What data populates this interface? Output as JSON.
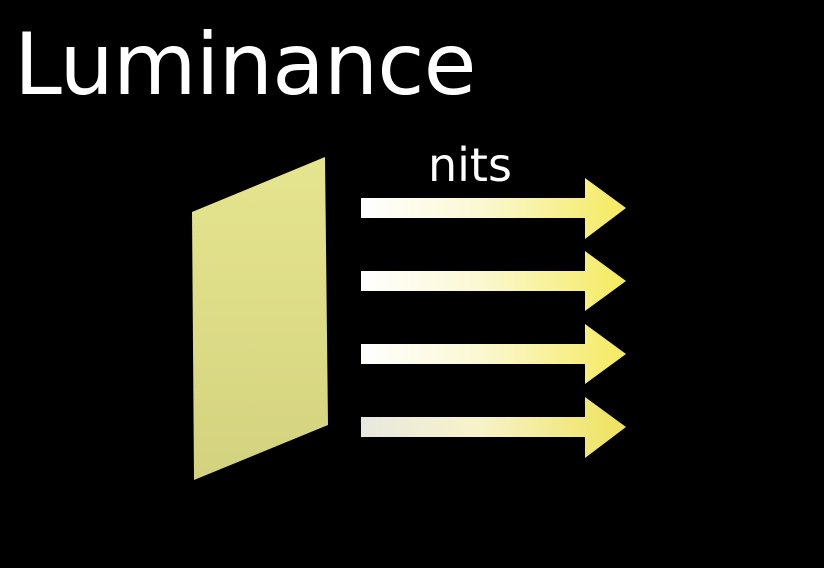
{
  "slide": {
    "title": "Luminance",
    "unit_label": "nits"
  },
  "colors": {
    "background": "#000000",
    "text": "#ffffff",
    "surface_top": "#e6e58f",
    "surface_bottom": "#d3d27e",
    "arrow_start": "#ffffff",
    "arrow_end": "#f4ea5e"
  },
  "diagram": {
    "emitting_surface": "light-emitting-surface",
    "arrow_count": 4
  }
}
